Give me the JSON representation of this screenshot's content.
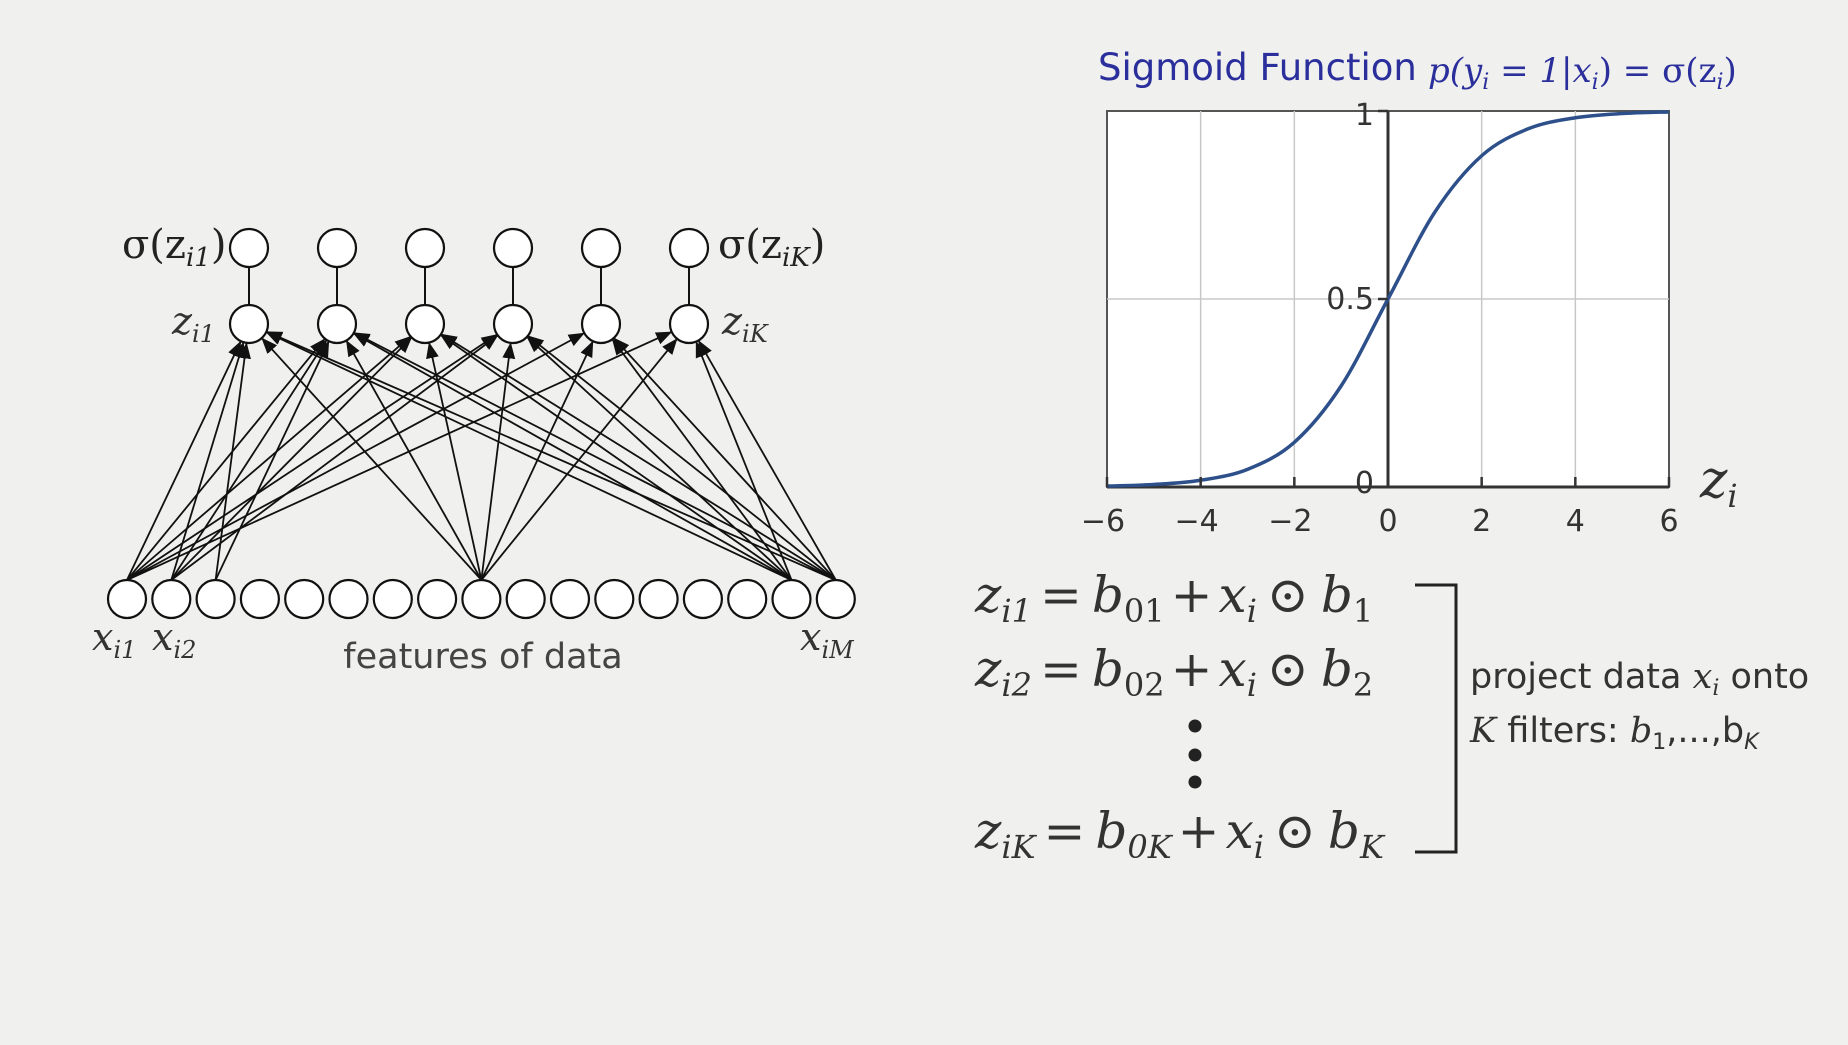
{
  "network": {
    "output_label_left": "σ(z",
    "output_label_left_sub": "i1",
    "output_label_left_close": ")",
    "output_label_right": "σ(z",
    "output_label_right_sub": "iK",
    "output_label_right_close": ")",
    "z_label_left": "z",
    "z_label_left_sub": "i1",
    "z_label_right": "z",
    "z_label_right_sub": "iK",
    "x_label_1": "x",
    "x_label_1_sub": "i1",
    "x_label_2": "x",
    "x_label_2_sub": "i2",
    "x_label_M": "x",
    "x_label_M_sub": "iM",
    "features_caption": "features of data",
    "hidden_count": 6,
    "input_count": 17
  },
  "chart_title": {
    "text": "Sigmoid Function",
    "formula_p": "p(y",
    "formula_sub1": "i",
    "formula_mid": " = 1|x",
    "formula_sub2": "i",
    "formula_close": ") = σ(z",
    "formula_sub3": "i",
    "formula_end": ")",
    "color": "#2b2f9c"
  },
  "chart_data": {
    "type": "line",
    "function": "sigmoid",
    "xlabel": "z",
    "xlabel_sub": "i",
    "xlim": [
      -6,
      6
    ],
    "ylim": [
      0,
      1
    ],
    "x_ticks": [
      "-6",
      "-4",
      "-2",
      "0",
      "2",
      "4",
      "6"
    ],
    "y_ticks": [
      "0",
      "0.5",
      "1"
    ],
    "grid": true,
    "line_color": "#2d4f8a",
    "x": [
      -6,
      -5,
      -4,
      -3,
      -2,
      -1,
      0,
      1,
      2,
      3,
      4,
      5,
      6
    ],
    "y": [
      0.0025,
      0.0067,
      0.018,
      0.047,
      0.119,
      0.269,
      0.5,
      0.731,
      0.881,
      0.953,
      0.982,
      0.9933,
      0.9975
    ]
  },
  "equations": [
    {
      "lhs": "z",
      "lhs_sub": "i1",
      "b0": "b",
      "b0_sub": "01",
      "x": "x",
      "x_sub": "i",
      "b": "b",
      "b_sub": "1"
    },
    {
      "lhs": "z",
      "lhs_sub": "i2",
      "b0": "b",
      "b0_sub": "02",
      "x": "x",
      "x_sub": "i",
      "b": "b",
      "b_sub": "2"
    },
    {
      "lhs": "z",
      "lhs_sub": "iK",
      "b0": "b",
      "b0_sub": "0K",
      "x": "x",
      "x_sub": "i",
      "b": "b",
      "b_sub": "K"
    }
  ],
  "equation_symbols": {
    "eq": "=",
    "plus": "+",
    "odot": "⊙"
  },
  "annotation": {
    "line1_text": "project data ",
    "line1_var": "x",
    "line1_var_sub": "i",
    "line1_end": " onto",
    "line2_var": "K",
    "line2_text": " filters: ",
    "line2_b1": "b",
    "line2_b1_sub": "1",
    "line2_mid": ",...,b",
    "line2_bK_sub": "K"
  }
}
